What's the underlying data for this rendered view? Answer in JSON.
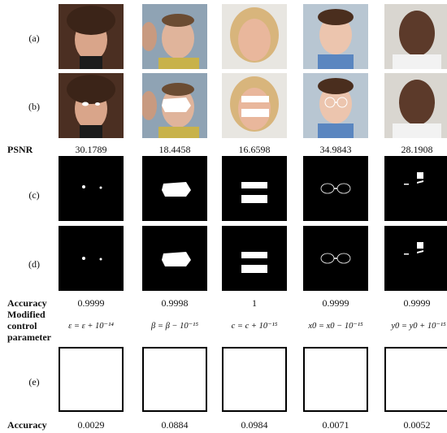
{
  "rows": {
    "a": "(a)",
    "b": "(b)",
    "c": "(c)",
    "d": "(d)",
    "e": "(e)",
    "psnr": "PSNR",
    "accuracy": "Accuracy",
    "modified": "Modified",
    "control": "control",
    "parameter": "parameter"
  },
  "psnr_values": [
    "30.1789",
    "18.4458",
    "16.6598",
    "34.9843",
    "28.1908"
  ],
  "accuracy_values": [
    "0.9999",
    "0.9998",
    "1",
    "0.9999",
    "0.9999"
  ],
  "modified_params": [
    "ε = ε + 10⁻¹⁴",
    "β = β − 10⁻¹⁵",
    "c = c + 10⁻¹⁵",
    "x0 = x0 − 10⁻¹⁵",
    "y0 = y0 + 10⁻¹⁵"
  ],
  "accuracy_e_values": [
    "0.0029",
    "0.0884",
    "0.0984",
    "0.0071",
    "0.0052"
  ]
}
